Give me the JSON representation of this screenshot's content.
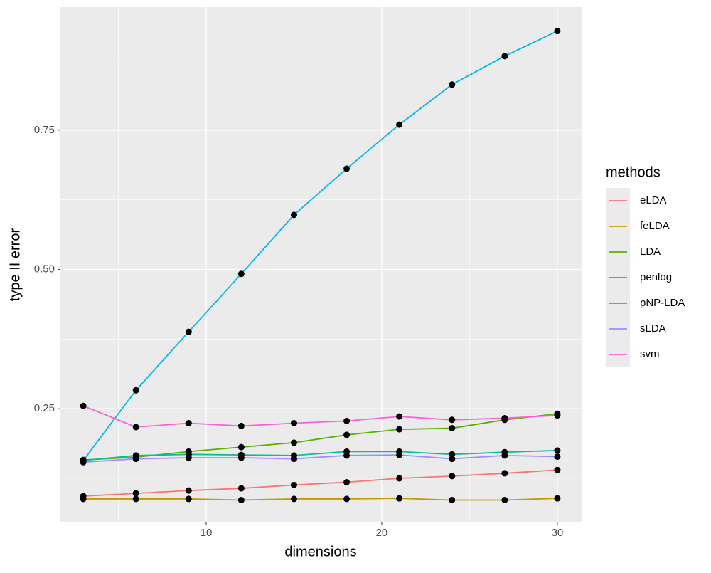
{
  "chart_data": {
    "type": "line",
    "x_label": "dimensions",
    "y_label": "type II error",
    "legend_title": "methods",
    "x": [
      3,
      6,
      9,
      12,
      15,
      18,
      21,
      24,
      27,
      30
    ],
    "series": [
      {
        "name": "eLDA",
        "color": "#F8766D",
        "values": [
          0.093,
          0.098,
          0.103,
          0.107,
          0.113,
          0.118,
          0.125,
          0.129,
          0.134,
          0.14
        ]
      },
      {
        "name": "feLDA",
        "color": "#C49A00",
        "values": [
          0.088,
          0.088,
          0.088,
          0.086,
          0.088,
          0.088,
          0.089,
          0.086,
          0.086,
          0.089
        ]
      },
      {
        "name": "LDA",
        "color": "#53B400",
        "values": [
          0.158,
          0.163,
          0.173,
          0.181,
          0.189,
          0.203,
          0.213,
          0.215,
          0.23,
          0.241
        ]
      },
      {
        "name": "penlog",
        "color": "#00C094",
        "values": [
          0.157,
          0.166,
          0.168,
          0.167,
          0.166,
          0.173,
          0.173,
          0.168,
          0.172,
          0.175
        ]
      },
      {
        "name": "pNP-LDA",
        "color": "#00B6EB",
        "values": [
          0.157,
          0.283,
          0.388,
          0.492,
          0.598,
          0.681,
          0.76,
          0.832,
          0.883,
          0.928
        ]
      },
      {
        "name": "sLDA",
        "color": "#A58AFF",
        "values": [
          0.154,
          0.16,
          0.162,
          0.162,
          0.16,
          0.166,
          0.167,
          0.16,
          0.166,
          0.164
        ]
      },
      {
        "name": "svm",
        "color": "#FB61D7",
        "values": [
          0.255,
          0.217,
          0.224,
          0.219,
          0.224,
          0.228,
          0.236,
          0.23,
          0.233,
          0.238
        ]
      }
    ],
    "xlim": [
      1.7,
      31.38
    ],
    "ylim": [
      0.047,
      0.971
    ],
    "xticks": [
      10,
      20,
      30
    ],
    "yticks": [
      0.25,
      {
        "value": 0.5,
        "label": "0.50"
      },
      0.75
    ],
    "grid": true,
    "point_color": "#000000",
    "legend_position": "right"
  }
}
